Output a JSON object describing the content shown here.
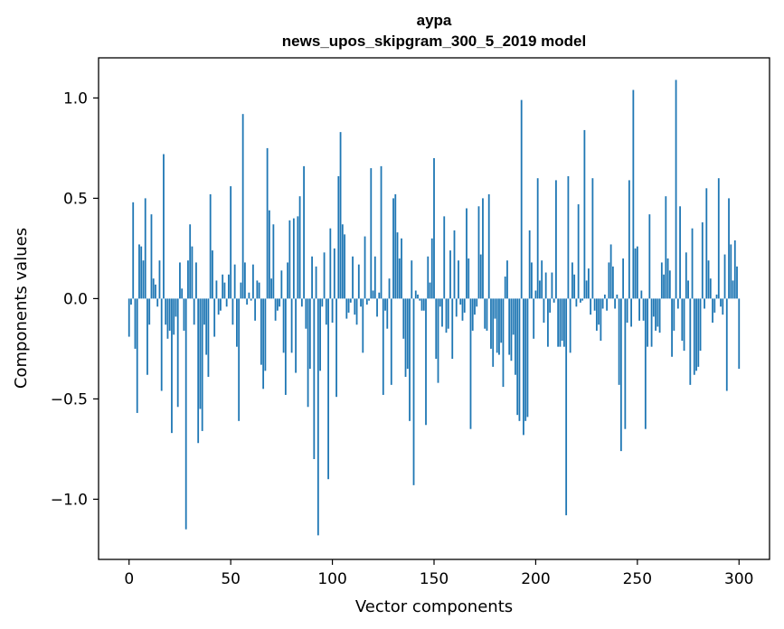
{
  "chart_data": {
    "type": "bar",
    "title": "aypa",
    "subtitle": "news_upos_skipgram_300_5_2019 model",
    "xlabel": "Vector components",
    "ylabel": "Components values",
    "xlim": [
      -15,
      315
    ],
    "ylim": [
      -1.3,
      1.2
    ],
    "xticks": [
      0,
      50,
      100,
      150,
      200,
      250,
      300
    ],
    "xtick_labels": [
      "0",
      "50",
      "100",
      "150",
      "200",
      "250",
      "300"
    ],
    "yticks": [
      -1.0,
      -0.5,
      0.0,
      0.5,
      1.0
    ],
    "ytick_labels": [
      "−1.0",
      "−0.5",
      "0.0",
      "0.5",
      "1.0"
    ],
    "grid": false,
    "bar_color": "#1f77b4",
    "values": [
      -0.19,
      -0.03,
      0.48,
      -0.25,
      -0.57,
      0.27,
      0.26,
      0.19,
      0.5,
      -0.38,
      -0.13,
      0.42,
      0.1,
      0.07,
      -0.04,
      0.19,
      -0.46,
      0.72,
      -0.13,
      -0.2,
      -0.16,
      -0.67,
      -0.18,
      -0.09,
      -0.54,
      0.18,
      0.05,
      -0.16,
      -1.15,
      0.19,
      0.37,
      0.26,
      -0.13,
      0.18,
      -0.72,
      -0.55,
      -0.66,
      -0.13,
      -0.28,
      -0.39,
      0.52,
      0.24,
      -0.19,
      0.09,
      -0.08,
      -0.06,
      0.12,
      0.08,
      -0.04,
      0.12,
      0.56,
      -0.13,
      0.17,
      -0.24,
      -0.61,
      0.08,
      0.92,
      0.18,
      -0.03,
      0.03,
      -0.01,
      0.17,
      -0.11,
      0.09,
      0.08,
      -0.33,
      -0.45,
      -0.36,
      0.75,
      0.44,
      0.1,
      0.37,
      -0.11,
      -0.06,
      -0.04,
      0.14,
      -0.27,
      -0.48,
      0.18,
      0.39,
      -0.27,
      0.4,
      -0.37,
      0.41,
      0.51,
      -0.04,
      0.66,
      -0.15,
      -0.54,
      -0.35,
      0.21,
      -0.8,
      0.16,
      -1.18,
      -0.36,
      -0.04,
      0.23,
      -0.13,
      -0.9,
      0.35,
      -0.12,
      0.25,
      -0.49,
      0.61,
      0.83,
      0.37,
      0.32,
      -0.1,
      -0.07,
      -0.02,
      0.21,
      -0.08,
      -0.13,
      0.17,
      -0.04,
      -0.27,
      0.31,
      -0.03,
      -0.01,
      0.65,
      0.04,
      0.21,
      -0.09,
      0.03,
      0.66,
      -0.48,
      -0.06,
      -0.15,
      0.1,
      -0.43,
      0.5,
      0.52,
      0.33,
      0.2,
      0.3,
      -0.2,
      -0.39,
      -0.35,
      -0.61,
      0.19,
      -0.93,
      0.04,
      0.02,
      -0.01,
      -0.06,
      -0.06,
      -0.63,
      0.21,
      0.08,
      0.3,
      0.7,
      -0.3,
      -0.42,
      -0.04,
      -0.14,
      0.41,
      -0.17,
      -0.15,
      0.24,
      -0.3,
      0.34,
      -0.09,
      0.19,
      -0.03,
      -0.11,
      -0.07,
      0.45,
      0.2,
      -0.65,
      -0.16,
      -0.08,
      -0.04,
      0.46,
      0.22,
      0.5,
      -0.15,
      -0.16,
      0.52,
      -0.25,
      -0.34,
      -0.1,
      -0.27,
      -0.28,
      -0.22,
      -0.44,
      0.11,
      0.19,
      -0.28,
      -0.31,
      -0.18,
      -0.38,
      -0.58,
      -0.61,
      0.99,
      -0.68,
      -0.61,
      -0.59,
      0.34,
      0.18,
      -0.2,
      0.04,
      0.6,
      0.09,
      0.19,
      -0.12,
      0.13,
      -0.24,
      -0.07,
      0.13,
      -0.02,
      0.59,
      -0.24,
      -0.24,
      -0.21,
      -0.24,
      -1.08,
      0.61,
      -0.27,
      0.18,
      0.12,
      -0.04,
      0.47,
      -0.02,
      -0.01,
      0.84,
      0.09,
      0.15,
      -0.08,
      0.6,
      -0.06,
      -0.16,
      -0.13,
      -0.21,
      -0.05,
      0.02,
      -0.06,
      0.18,
      0.27,
      0.16,
      -0.05,
      0.02,
      -0.43,
      -0.76,
      0.2,
      -0.65,
      -0.12,
      0.59,
      -0.14,
      1.04,
      0.25,
      0.26,
      -0.11,
      0.04,
      -0.11,
      -0.65,
      -0.24,
      0.42,
      -0.24,
      -0.09,
      -0.16,
      -0.14,
      -0.17,
      0.18,
      0.12,
      0.51,
      0.2,
      0.14,
      -0.29,
      -0.16,
      1.09,
      -0.05,
      0.46,
      -0.21,
      -0.26,
      0.23,
      0.09,
      -0.43,
      0.35,
      -0.38,
      -0.36,
      -0.34,
      -0.26,
      0.38,
      -0.05,
      0.55,
      0.19,
      0.1,
      -0.12,
      -0.07,
      0.02,
      0.6,
      -0.04,
      -0.08,
      0.22,
      -0.46,
      0.5,
      0.27,
      0.09,
      0.29,
      0.16,
      -0.35
    ]
  }
}
